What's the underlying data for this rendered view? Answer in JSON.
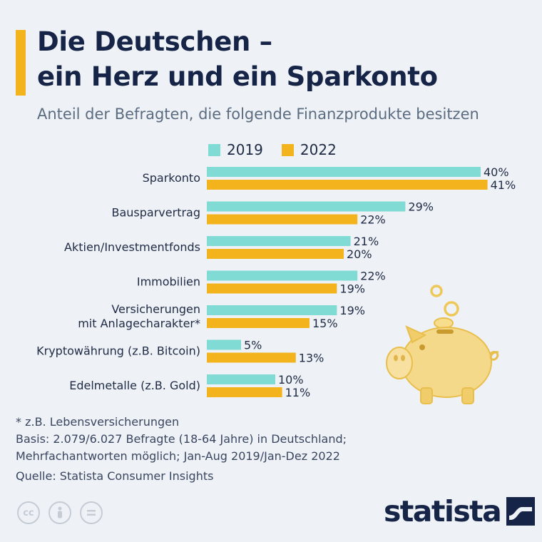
{
  "title_line1": "Die Deutschen –",
  "title_line2": "ein Herz und ein Sparkonto",
  "subtitle": "Anteil der Befragten, die folgende Finanzprodukte besitzen",
  "colors": {
    "accent": "#f2b31c",
    "series_2019": "#7fdbd3",
    "series_2022": "#f2b31c",
    "title": "#162447"
  },
  "chart_data": {
    "type": "bar",
    "orientation": "horizontal",
    "unit": "%",
    "categories": [
      [
        "Sparkonto"
      ],
      [
        "Bausparvertrag"
      ],
      [
        "Aktien/Investmentfonds"
      ],
      [
        "Immobilien"
      ],
      [
        "Versicherungen",
        "mit Anlagecharakter*"
      ],
      [
        "Kryptowährung (z.B. Bitcoin)"
      ],
      [
        "Edelmetalle (z.B. Gold)"
      ]
    ],
    "series": [
      {
        "name": "2019",
        "values": [
          40,
          29,
          21,
          22,
          19,
          5,
          10
        ]
      },
      {
        "name": "2022",
        "values": [
          41,
          22,
          20,
          19,
          15,
          13,
          11
        ]
      }
    ],
    "legend_position": "top",
    "grid": false
  },
  "footnotes": {
    "note": "* z.B. Lebensversicherungen",
    "basis_line1": "Basis: 2.079/6.027 Befragte (18-64 Jahre) in Deutschland;",
    "basis_line2": "Mehrfachantworten möglich; Jan-Aug 2019/Jan-Dez 2022",
    "source": "Quelle: Statista Consumer Insights"
  },
  "license_icons": [
    "cc-icon",
    "attribution-icon",
    "no-derivatives-icon"
  ],
  "brand": "statista"
}
